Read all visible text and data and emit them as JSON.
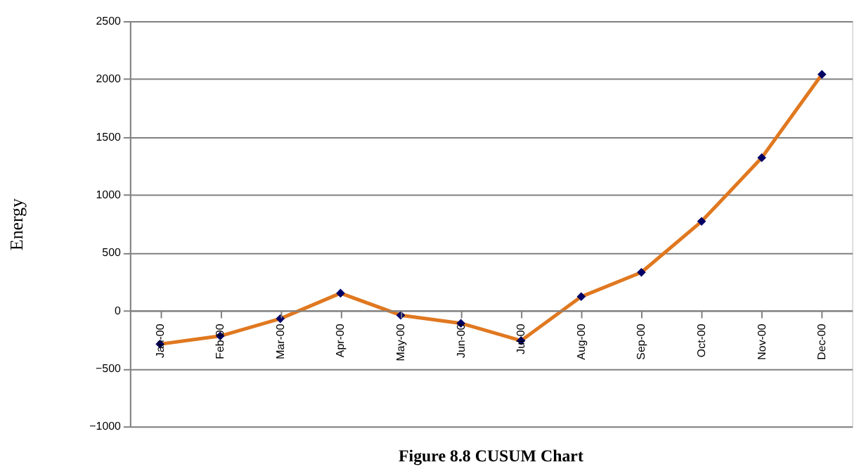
{
  "chart_data": {
    "type": "line",
    "title": "Figure 8.8 CUSUM Chart",
    "ylabel": "Energy",
    "categories": [
      "Jan-00",
      "Feb-00",
      "Mar-00",
      "Apr-00",
      "May-00",
      "Jun-00",
      "Jul-00",
      "Aug-00",
      "Sep-00",
      "Oct-00",
      "Nov-00",
      "Dec-00"
    ],
    "series": [
      {
        "color": "#e07820",
        "colors": [
          "#000066",
          "#000066",
          "#000066",
          "#000066",
          "#000066",
          "#000066",
          "#000066",
          "#000066",
          "#000066",
          "#000066",
          "#000066",
          "#000066"
        ],
        "values": [
          -290,
          -220,
          -70,
          150,
          -40,
          -110,
          -260,
          120,
          330,
          770,
          1320,
          2040
        ]
      }
    ],
    "ylim": [
      -1000,
      2500
    ],
    "yticks": [
      -1000,
      -500,
      0,
      500,
      1000,
      1500,
      2000,
      2500
    ],
    "grid": "y",
    "marker": "diamond",
    "line_style": "solid"
  }
}
